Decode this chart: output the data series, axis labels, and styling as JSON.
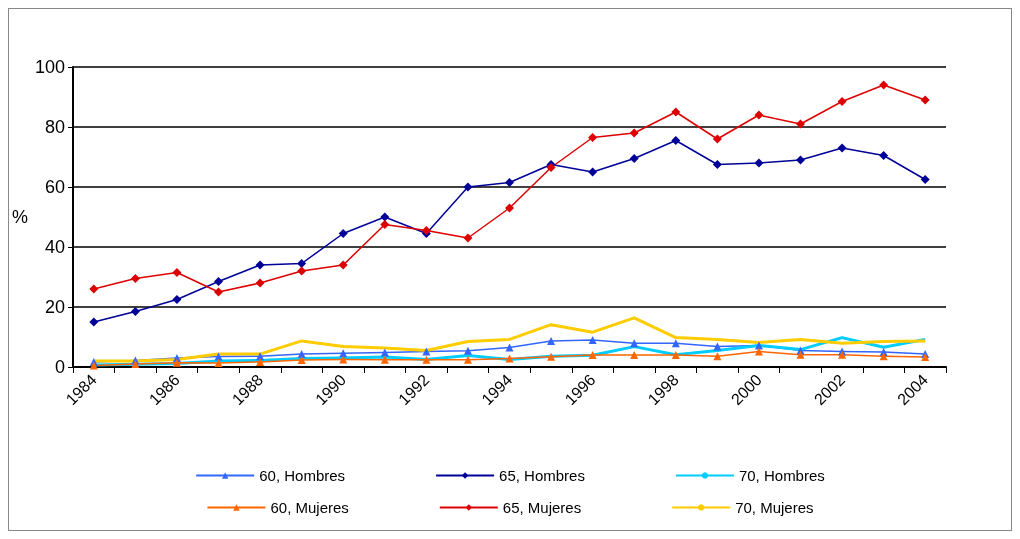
{
  "chart_data": {
    "type": "line",
    "ylabel": "%",
    "categories": [
      "1984",
      null,
      "1986",
      null,
      "1988",
      null,
      "1990",
      null,
      "1992",
      null,
      "1994",
      null,
      "1996",
      null,
      "1998",
      null,
      "2000",
      null,
      "2002",
      null,
      "2004"
    ],
    "series": [
      {
        "name": "60, Hombres",
        "color": "#3366ff",
        "marker": "triangle",
        "values": [
          1.7,
          2.2,
          3,
          3.5,
          3.6,
          4.3,
          4.6,
          4.8,
          5.2,
          5.4,
          6.5,
          8.7,
          9,
          7.9,
          7.9,
          6.8,
          7.2,
          5.5,
          5.2,
          5,
          4.3
        ]
      },
      {
        "name": "65, Hombres",
        "color": "#000099",
        "marker": "diamond",
        "values": [
          15,
          18.5,
          22.5,
          28.5,
          34,
          34.5,
          44.5,
          50,
          44.5,
          60,
          61.5,
          67.5,
          65,
          69.5,
          75.5,
          67.5,
          68,
          69,
          73,
          70.5,
          62.5
        ]
      },
      {
        "name": "70, Hombres",
        "color": "#00ccff",
        "marker": "none",
        "values": [
          0.7,
          0.9,
          1.2,
          2,
          2.2,
          2.8,
          3,
          3.3,
          2.5,
          3.8,
          2.5,
          3.6,
          3.9,
          6.8,
          4.1,
          5.5,
          7.2,
          5.8,
          9.8,
          6.6,
          9.2
        ]
      },
      {
        "name": "60, Mujeres",
        "color": "#ff6600",
        "marker": "triangle",
        "values": [
          0.5,
          1,
          1.4,
          1.3,
          1.7,
          2.3,
          2.5,
          2.4,
          2.4,
          2.4,
          2.8,
          3.4,
          4,
          4,
          4,
          3.6,
          5.2,
          4.1,
          4.1,
          3.6,
          3.3
        ]
      },
      {
        "name": "65, Mujeres",
        "color": "#dd0000",
        "marker": "diamond",
        "values": [
          26,
          29.5,
          31.5,
          25,
          28,
          32,
          34,
          47.5,
          45.5,
          43,
          53,
          66.5,
          76.5,
          78,
          85,
          76,
          84,
          81,
          88.5,
          94,
          89
        ]
      },
      {
        "name": "70, Mujeres",
        "color": "#ffcc00",
        "marker": "none",
        "values": [
          2,
          2,
          2.5,
          4.3,
          4.3,
          8.7,
          6.8,
          6.3,
          5.5,
          8.5,
          9.2,
          14.1,
          11.6,
          16.4,
          9.8,
          9.2,
          8.2,
          9.2,
          7.9,
          8.5,
          8.7
        ]
      }
    ],
    "ylim": [
      0,
      100
    ],
    "yticks": [
      0,
      20,
      40,
      60,
      80,
      100
    ],
    "grid": "y",
    "legend": "bottom"
  }
}
